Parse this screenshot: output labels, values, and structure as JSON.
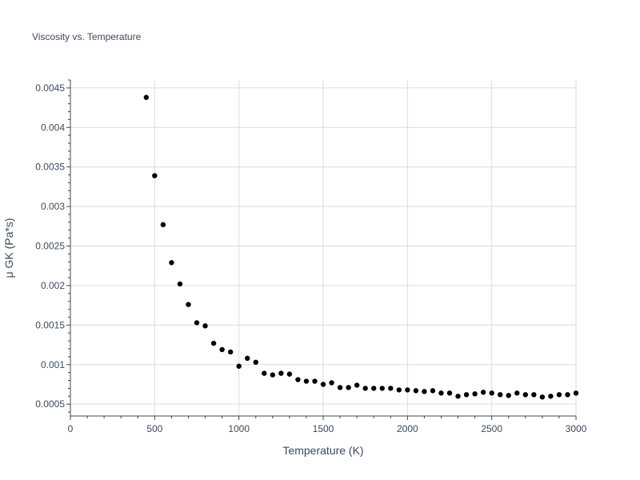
{
  "chart_data": {
    "type": "scatter",
    "title": "Viscosity vs. Temperature",
    "xlabel": "Temperature (K)",
    "ylabel": "μ GK (Pa*s)",
    "xlim": [
      0,
      3000
    ],
    "ylim": [
      0.00035,
      0.0046
    ],
    "xticks": [
      0,
      500,
      1000,
      1500,
      2000,
      2500,
      3000
    ],
    "xtick_labels": [
      "0",
      "500",
      "1000",
      "1500",
      "2000",
      "2500",
      "3000"
    ],
    "yticks": [
      0.0005,
      0.001,
      0.0015,
      0.002,
      0.0025,
      0.003,
      0.0035,
      0.004,
      0.0045
    ],
    "ytick_labels": [
      "0.0005",
      "0.001",
      "0.0015",
      "0.002",
      "0.0025",
      "0.003",
      "0.0035",
      "0.004",
      "0.0045"
    ],
    "grid": true,
    "marker_color": "#000000",
    "x": [
      450,
      500,
      550,
      600,
      650,
      700,
      750,
      800,
      850,
      900,
      950,
      1000,
      1050,
      1100,
      1150,
      1200,
      1250,
      1300,
      1350,
      1400,
      1450,
      1500,
      1550,
      1600,
      1650,
      1700,
      1750,
      1800,
      1850,
      1900,
      1950,
      2000,
      2050,
      2100,
      2150,
      2200,
      2250,
      2300,
      2350,
      2400,
      2450,
      2500,
      2550,
      2600,
      2650,
      2700,
      2750,
      2800,
      2850,
      2900,
      2950,
      3000
    ],
    "y": [
      0.00438,
      0.00339,
      0.00277,
      0.00229,
      0.00202,
      0.00176,
      0.00153,
      0.00149,
      0.00127,
      0.00119,
      0.00116,
      0.00098,
      0.00108,
      0.00103,
      0.00089,
      0.00087,
      0.00089,
      0.00088,
      0.00081,
      0.00079,
      0.00079,
      0.00075,
      0.00077,
      0.00071,
      0.00071,
      0.00074,
      0.0007,
      0.0007,
      0.0007,
      0.0007,
      0.00068,
      0.00068,
      0.00067,
      0.00066,
      0.00067,
      0.00064,
      0.00064,
      0.0006,
      0.00062,
      0.00063,
      0.00065,
      0.00064,
      0.00062,
      0.00061,
      0.00064,
      0.00062,
      0.00062,
      0.00059,
      0.0006,
      0.00062,
      0.00062,
      0.00064
    ]
  }
}
